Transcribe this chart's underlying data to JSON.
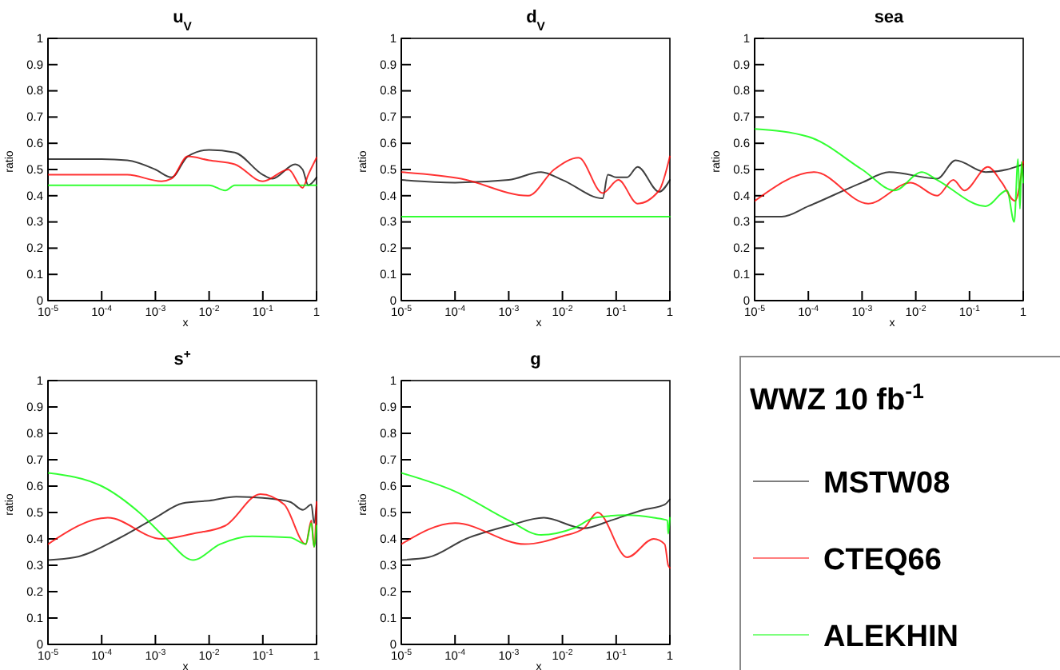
{
  "chart_data": [
    {
      "type": "line",
      "title": "u$_{V}$",
      "xlabel": "x",
      "ylabel": "ratio",
      "log": "x",
      "xlim": [
        1e-05,
        1
      ],
      "xticks": [
        {
          "value": 1e-05,
          "label": "10$^{-5}$"
        },
        {
          "value": 0.0001,
          "label": "10$^{-4}$"
        },
        {
          "value": 0.001,
          "label": "10$^{-3}$"
        },
        {
          "value": 0.01,
          "label": "10$^{-2}$"
        },
        {
          "value": 0.1,
          "label": "10$^{-1}$"
        },
        {
          "value": 1,
          "label": "1"
        }
      ],
      "ylim": [
        0,
        1
      ],
      "yticks": [
        0,
        0.1,
        0.2,
        0.3,
        0.4,
        0.5,
        0.6,
        0.7,
        0.8,
        0.9,
        1
      ],
      "legend": false,
      "series": [
        {
          "color": "#000000",
          "x": [
            1e-05,
            0.0001,
            0.0003,
            0.001,
            0.002,
            0.004,
            0.01,
            0.03,
            0.1,
            0.15,
            0.4,
            0.55,
            0.7,
            1
          ],
          "values": [
            0.54,
            0.54,
            0.535,
            0.5,
            0.47,
            0.55,
            0.575,
            0.565,
            0.48,
            0.465,
            0.52,
            0.5,
            0.44,
            0.47
          ]
        },
        {
          "color": "#ff0000",
          "x": [
            1e-05,
            0.0003,
            0.0013,
            0.002,
            0.004,
            0.01,
            0.03,
            0.1,
            0.3,
            0.55,
            0.7,
            1
          ],
          "values": [
            0.48,
            0.48,
            0.455,
            0.465,
            0.55,
            0.535,
            0.52,
            0.455,
            0.5,
            0.43,
            0.48,
            0.545
          ]
        },
        {
          "color": "#00ff00",
          "x": [
            1e-05,
            0.01,
            0.02,
            0.03,
            1
          ],
          "values": [
            0.44,
            0.44,
            0.42,
            0.44,
            0.44
          ]
        }
      ]
    },
    {
      "type": "line",
      "title": "d$_{V}$",
      "xlabel": "x",
      "ylabel": "ratio",
      "log": "x",
      "xlim": [
        1e-05,
        1
      ],
      "xticks": [
        {
          "value": 1e-05,
          "label": "10$^{-5}$"
        },
        {
          "value": 0.0001,
          "label": "10$^{-4}$"
        },
        {
          "value": 0.001,
          "label": "10$^{-3}$"
        },
        {
          "value": 0.01,
          "label": "10$^{-2}$"
        },
        {
          "value": 0.1,
          "label": "10$^{-1}$"
        },
        {
          "value": 1,
          "label": "1"
        }
      ],
      "ylim": [
        0,
        1
      ],
      "yticks": [
        0,
        0.1,
        0.2,
        0.3,
        0.4,
        0.5,
        0.6,
        0.7,
        0.8,
        0.9,
        1
      ],
      "legend": false,
      "series": [
        {
          "color": "#000000",
          "x": [
            1e-05,
            0.0001,
            0.001,
            0.004,
            0.01,
            0.056,
            0.07,
            0.1,
            0.16,
            0.25,
            0.63,
            1
          ],
          "values": [
            0.46,
            0.45,
            0.46,
            0.49,
            0.46,
            0.39,
            0.48,
            0.47,
            0.47,
            0.51,
            0.415,
            0.46
          ]
        },
        {
          "color": "#ff0000",
          "x": [
            1e-05,
            0.00013,
            0.0023,
            0.007,
            0.02,
            0.056,
            0.11,
            0.25,
            0.63,
            1
          ],
          "values": [
            0.49,
            0.465,
            0.4,
            0.5,
            0.545,
            0.41,
            0.46,
            0.37,
            0.42,
            0.55
          ]
        },
        {
          "color": "#00ff00",
          "x": [
            1e-05,
            1
          ],
          "values": [
            0.32,
            0.32
          ]
        }
      ]
    },
    {
      "type": "line",
      "title": "sea",
      "xlabel": "x",
      "ylabel": "ratio",
      "log": "x",
      "xlim": [
        1e-05,
        1
      ],
      "xticks": [
        {
          "value": 1e-05,
          "label": "10$^{-5}$"
        },
        {
          "value": 0.0001,
          "label": "10$^{-4}$"
        },
        {
          "value": 0.001,
          "label": "10$^{-3}$"
        },
        {
          "value": 0.01,
          "label": "10$^{-2}$"
        },
        {
          "value": 0.1,
          "label": "10$^{-1}$"
        },
        {
          "value": 1,
          "label": "1"
        }
      ],
      "ylim": [
        0,
        1
      ],
      "yticks": [
        0,
        0.1,
        0.2,
        0.3,
        0.4,
        0.5,
        0.6,
        0.7,
        0.8,
        0.9,
        1
      ],
      "legend": false,
      "series": [
        {
          "color": "#000000",
          "x": [
            1e-05,
            3.2e-05,
            0.0001,
            0.001,
            0.0032,
            0.025,
            0.055,
            0.2,
            0.5,
            1
          ],
          "values": [
            0.32,
            0.32,
            0.36,
            0.45,
            0.49,
            0.465,
            0.535,
            0.49,
            0.5,
            0.52
          ]
        },
        {
          "color": "#ff0000",
          "x": [
            1e-05,
            0.00013,
            0.0013,
            0.008,
            0.025,
            0.05,
            0.08,
            0.22,
            0.4,
            0.7,
            1
          ],
          "values": [
            0.38,
            0.49,
            0.37,
            0.45,
            0.4,
            0.46,
            0.42,
            0.51,
            0.45,
            0.38,
            0.53
          ]
        },
        {
          "color": "#00ff00",
          "x": [
            1e-05,
            0.0001,
            0.001,
            0.004,
            0.013,
            0.025,
            0.2,
            0.5,
            0.68,
            0.8,
            0.87,
            0.93,
            1
          ],
          "values": [
            0.655,
            0.625,
            0.5,
            0.42,
            0.49,
            0.46,
            0.36,
            0.42,
            0.3,
            0.54,
            0.35,
            0.53,
            0.45
          ]
        }
      ]
    },
    {
      "type": "line",
      "title": "s$^{+}$",
      "xlabel": "x",
      "ylabel": "ratio",
      "log": "x",
      "xlim": [
        1e-05,
        1
      ],
      "xticks": [
        {
          "value": 1e-05,
          "label": "10$^{-5}$"
        },
        {
          "value": 0.0001,
          "label": "10$^{-4}$"
        },
        {
          "value": 0.001,
          "label": "10$^{-3}$"
        },
        {
          "value": 0.01,
          "label": "10$^{-2}$"
        },
        {
          "value": 0.1,
          "label": "10$^{-1}$"
        },
        {
          "value": 1,
          "label": "1"
        }
      ],
      "ylim": [
        0,
        1
      ],
      "yticks": [
        0,
        0.1,
        0.2,
        0.3,
        0.4,
        0.5,
        0.6,
        0.7,
        0.8,
        0.9,
        1
      ],
      "legend": false,
      "series": [
        {
          "color": "#000000",
          "x": [
            1e-05,
            3.2e-05,
            0.0002,
            0.001,
            0.0032,
            0.01,
            0.032,
            0.1,
            0.32,
            0.56,
            0.8,
            0.9,
            1
          ],
          "values": [
            0.32,
            0.33,
            0.4,
            0.48,
            0.535,
            0.545,
            0.56,
            0.555,
            0.54,
            0.51,
            0.53,
            0.46,
            0.53
          ]
        },
        {
          "color": "#ff0000",
          "x": [
            1e-05,
            0.00013,
            0.0013,
            0.005,
            0.02,
            0.09,
            0.25,
            0.63,
            0.8,
            0.9,
            1
          ],
          "values": [
            0.38,
            0.48,
            0.4,
            0.42,
            0.45,
            0.57,
            0.53,
            0.38,
            0.47,
            0.37,
            0.54
          ]
        },
        {
          "color": "#00ff00",
          "x": [
            1e-05,
            0.0001,
            0.0005,
            0.0016,
            0.005,
            0.016,
            0.063,
            0.32,
            0.63,
            0.8,
            0.9,
            1
          ],
          "values": [
            0.65,
            0.6,
            0.5,
            0.4,
            0.32,
            0.38,
            0.41,
            0.405,
            0.38,
            0.46,
            0.37,
            0.45
          ]
        }
      ]
    },
    {
      "type": "line",
      "title": "g",
      "xlabel": "x",
      "ylabel": "ratio",
      "log": "x",
      "xlim": [
        1e-05,
        1
      ],
      "xticks": [
        {
          "value": 1e-05,
          "label": "10$^{-5}$"
        },
        {
          "value": 0.0001,
          "label": "10$^{-4}$"
        },
        {
          "value": 0.001,
          "label": "10$^{-3}$"
        },
        {
          "value": 0.01,
          "label": "10$^{-2}$"
        },
        {
          "value": 0.1,
          "label": "10$^{-1}$"
        },
        {
          "value": 1,
          "label": "1"
        }
      ],
      "ylim": [
        0,
        1
      ],
      "yticks": [
        0,
        0.1,
        0.2,
        0.3,
        0.4,
        0.5,
        0.6,
        0.7,
        0.8,
        0.9,
        1
      ],
      "legend": "right",
      "legend_title": "WWZ 10 fb$^{-1}$",
      "series": [
        {
          "name": "MSTW08",
          "color": "#000000",
          "x": [
            1e-05,
            3.2e-05,
            0.00016,
            0.001,
            0.0045,
            0.025,
            0.08,
            0.32,
            0.8,
            1
          ],
          "values": [
            0.32,
            0.33,
            0.4,
            0.45,
            0.48,
            0.44,
            0.47,
            0.51,
            0.53,
            0.55
          ]
        },
        {
          "name": "CTEQ66",
          "color": "#ff0000",
          "x": [
            1e-05,
            0.0001,
            0.002,
            0.01,
            0.025,
            0.045,
            0.16,
            0.5,
            0.8,
            0.93,
            1
          ],
          "values": [
            0.38,
            0.46,
            0.38,
            0.41,
            0.44,
            0.5,
            0.33,
            0.4,
            0.38,
            0.3,
            0.29
          ]
        },
        {
          "name": "ALEKHIN",
          "color": "#00ff00",
          "x": [
            1e-05,
            0.0001,
            0.001,
            0.004,
            0.016,
            0.04,
            0.16,
            0.5,
            0.9,
            0.93,
            1
          ],
          "values": [
            0.65,
            0.58,
            0.47,
            0.415,
            0.44,
            0.48,
            0.49,
            0.48,
            0.47,
            0.42,
            0.48
          ]
        }
      ]
    }
  ]
}
